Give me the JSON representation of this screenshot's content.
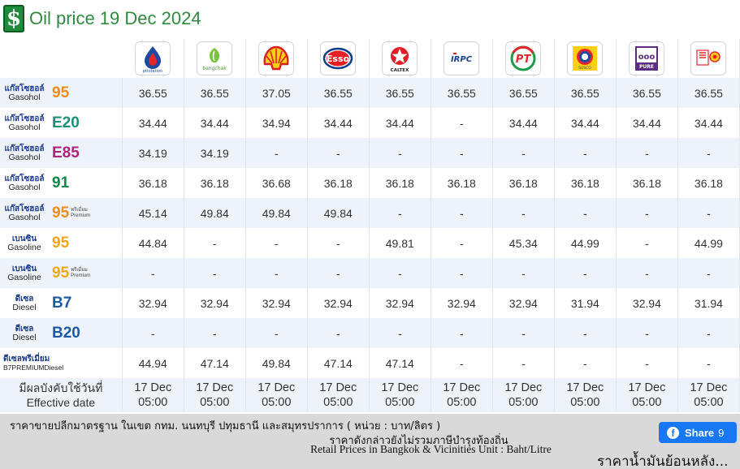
{
  "header": {
    "icon_glyph": "$",
    "title": "Oil price 19 Dec 2024"
  },
  "brands": [
    {
      "name": "ptt-logo",
      "icon": "ptt-logo",
      "caption": "pttstation"
    },
    {
      "name": "bangchak-logo",
      "icon": "bangchak-logo",
      "caption": "bangchak"
    },
    {
      "name": "shell-logo",
      "icon": "shell-logo",
      "caption": ""
    },
    {
      "name": "esso-logo",
      "icon": "esso-logo",
      "caption": "Esso"
    },
    {
      "name": "caltex-logo",
      "icon": "caltex-logo",
      "caption": "CALTEX"
    },
    {
      "name": "irpc-logo",
      "icon": "irpc-logo",
      "caption": "IRPC"
    },
    {
      "name": "pt-logo",
      "icon": "pt-logo",
      "caption": "PT"
    },
    {
      "name": "susco-logo",
      "icon": "susco-logo",
      "caption": "SUSCO"
    },
    {
      "name": "pure-logo",
      "icon": "pure-logo",
      "caption": "PURE"
    },
    {
      "name": "local-brand-logo",
      "icon": "local-brand-logo",
      "caption": ""
    }
  ],
  "fuels": [
    {
      "thai": "แก๊สโซฮอล์",
      "eng": "Gasohol",
      "code": "95",
      "color": "orange",
      "sub": [],
      "prices": [
        "36.55",
        "36.55",
        "37.05",
        "36.55",
        "36.55",
        "36.55",
        "36.55",
        "36.55",
        "36.55",
        "36.55"
      ]
    },
    {
      "thai": "แก๊สโซฮอล์",
      "eng": "Gasohol",
      "code": "E20",
      "color": "teal",
      "sub": [],
      "prices": [
        "34.44",
        "34.44",
        "34.94",
        "34.44",
        "34.44",
        "-",
        "34.44",
        "34.44",
        "34.44",
        "34.44"
      ]
    },
    {
      "thai": "แก๊สโซฮอล์",
      "eng": "Gasohol",
      "code": "E85",
      "color": "magenta",
      "sub": [],
      "prices": [
        "34.19",
        "34.19",
        "-",
        "-",
        "-",
        "-",
        "-",
        "-",
        "-",
        "-"
      ]
    },
    {
      "thai": "แก๊สโซฮอล์",
      "eng": "Gasohol",
      "code": "91",
      "color": "green",
      "sub": [],
      "prices": [
        "36.18",
        "36.18",
        "36.68",
        "36.18",
        "36.18",
        "36.18",
        "36.18",
        "36.18",
        "36.18",
        "36.18"
      ]
    },
    {
      "thai": "แก๊สโซฮอล์",
      "eng": "Gasohol",
      "code": "95",
      "color": "orange",
      "sub": [
        "พรีเมี่ยม",
        "Premium"
      ],
      "prices": [
        "45.14",
        "49.84",
        "49.84",
        "49.84",
        "-",
        "-",
        "-",
        "-",
        "-",
        "-"
      ]
    },
    {
      "thai": "เบนซิน",
      "eng": "Gasoline",
      "code": "95",
      "color": "yellow",
      "sub": [],
      "prices": [
        "44.84",
        "-",
        "-",
        "-",
        "49.81",
        "-",
        "45.34",
        "44.99",
        "-",
        "44.99"
      ]
    },
    {
      "thai": "เบนซิน",
      "eng": "Gasoline",
      "code": "95",
      "color": "yellow",
      "sub": [
        "พรีเมี่ยม",
        "Premium"
      ],
      "prices": [
        "-",
        "-",
        "-",
        "-",
        "-",
        "-",
        "-",
        "-",
        "-",
        "-"
      ]
    },
    {
      "thai": "ดีเซล",
      "eng": "Diesel",
      "code": "B7",
      "color": "blue",
      "sub": [],
      "prices": [
        "32.94",
        "32.94",
        "32.94",
        "32.94",
        "32.94",
        "32.94",
        "32.94",
        "31.94",
        "32.94",
        "31.94"
      ]
    },
    {
      "thai": "ดีเซล",
      "eng": "Diesel",
      "code": "B20",
      "color": "blue",
      "sub": [],
      "prices": [
        "-",
        "-",
        "-",
        "-",
        "-",
        "-",
        "-",
        "-",
        "-",
        "-"
      ]
    },
    {
      "premium_thai": "ดีเซลพรีเมี่ยม",
      "premium_eng": "B7PREMIUMDiesel",
      "prices": [
        "44.94",
        "47.14",
        "49.84",
        "47.14",
        "47.14",
        "-",
        "-",
        "-",
        "-",
        "-"
      ]
    }
  ],
  "effective": {
    "label_thai": "มีผลบังคับใช้วันที่",
    "label_eng": "Effective date",
    "dates": [
      "17 Dec",
      "17 Dec",
      "17 Dec",
      "17 Dec",
      "17 Dec",
      "17 Dec",
      "17 Dec",
      "17 Dec",
      "17 Dec",
      "17 Dec"
    ],
    "times": [
      "05:00",
      "05:00",
      "05:00",
      "05:00",
      "05:00",
      "05:00",
      "05:00",
      "05:00",
      "05:00",
      "05:00"
    ]
  },
  "footer": {
    "line1": "ราคาขายปลีกมาตรฐาน ในเขต กทม. นนทบุรี ปทุมธานี และสมุทรปราการ ( หน่วย : บาท/ลิตร )",
    "line2": "ราคาดังกล่าวยังไม่รวมภาษีบำรุงท้องถิ่น",
    "line3": "Retail Prices in Bangkok & Vicinities Unit : Baht/Litre"
  },
  "share": {
    "label": "Share",
    "count": "9",
    "icon": "facebook-icon"
  },
  "more_link": "ราคาน้ำมันย้อนหลัง..."
}
